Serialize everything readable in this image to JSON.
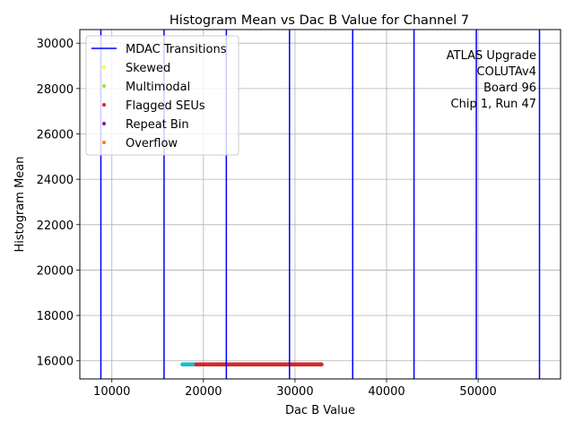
{
  "chart_data": {
    "type": "scatter",
    "title": "Histogram Mean vs Dac B Value for Channel 7",
    "xlabel": "Dac B Value",
    "ylabel": "Histogram Mean",
    "xlim": [
      6500,
      59000
    ],
    "ylim": [
      15200,
      30600
    ],
    "xticks": [
      10000,
      20000,
      30000,
      40000,
      50000
    ],
    "yticks": [
      16000,
      18000,
      20000,
      22000,
      24000,
      26000,
      28000,
      30000
    ],
    "grid": true,
    "legend_position": "top-left",
    "transitions": {
      "name": "MDAC Transitions",
      "color": "#0000ff",
      "x": [
        8800,
        15700,
        22500,
        29400,
        36300,
        43000,
        49800,
        56700
      ]
    },
    "series": [
      {
        "name": "Skewed",
        "color": "#ffff33",
        "points": []
      },
      {
        "name": "Multimodal",
        "color": "#99e62e",
        "points": []
      },
      {
        "name": "Flagged SEUs",
        "color": "#d62728",
        "segments": [
          [
            19200,
            32900
          ]
        ],
        "y": 15840
      },
      {
        "name": "Repeat Bin",
        "color": "#7b1fa2",
        "points": []
      },
      {
        "name": "Overflow",
        "color": "#ff7f0e",
        "points": []
      }
    ],
    "base_series": {
      "color": "#17becf",
      "segments": [
        [
          17700,
          19200
        ]
      ],
      "y": 15840
    },
    "annotation": [
      "ATLAS Upgrade",
      "COLUTAv4",
      "Board 96",
      "Chip 1, Run 47"
    ]
  }
}
